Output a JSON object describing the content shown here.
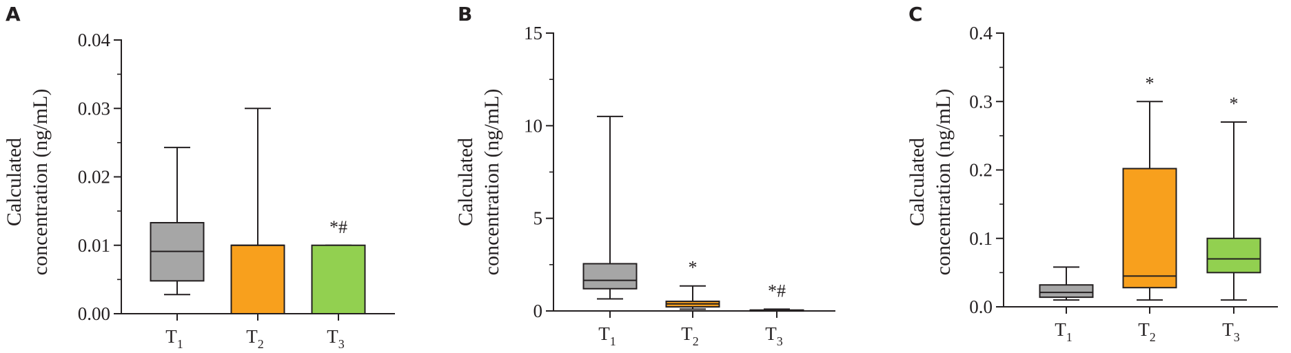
{
  "colors": {
    "axis": "#231f20",
    "T1": "#a6a6a6",
    "T2": "#f8a01d",
    "T3": "#92d050"
  },
  "chart_data": [
    {
      "panel": "A",
      "type": "box",
      "ylabel": [
        "Calculated",
        "concentration (ng/mL)"
      ],
      "ylim": [
        0,
        0.04
      ],
      "yticks": [
        "0.00",
        "0.01",
        "0.02",
        "0.03",
        "0.04"
      ],
      "yminor_step": 0.005,
      "categories": [
        {
          "main": "T",
          "sub": "1"
        },
        {
          "main": "T",
          "sub": "2"
        },
        {
          "main": "T",
          "sub": "3"
        }
      ],
      "boxes": [
        {
          "min": 0.0028,
          "q1": 0.0048,
          "median": 0.0091,
          "q3": 0.0133,
          "max": 0.0243,
          "annotation": ""
        },
        {
          "min": 0.0,
          "q1": 0.0,
          "median": 0.01,
          "q3": 0.01,
          "max": 0.03,
          "annotation": ""
        },
        {
          "min": 0.0,
          "q1": 0.0,
          "median": 0.0,
          "q3": 0.01,
          "max": 0.01,
          "annotation": "*#"
        }
      ]
    },
    {
      "panel": "B",
      "type": "box",
      "ylabel": [
        "Calculated",
        "concentration (ng/mL)"
      ],
      "ylim": [
        0,
        15
      ],
      "yticks": [
        "0",
        "5",
        "10",
        "15"
      ],
      "yminor_step": 2.5,
      "categories": [
        {
          "main": "T",
          "sub": "1"
        },
        {
          "main": "T",
          "sub": "2"
        },
        {
          "main": "T",
          "sub": "3"
        }
      ],
      "boxes": [
        {
          "min": 0.65,
          "q1": 1.2,
          "median": 1.65,
          "q3": 2.55,
          "max": 10.5,
          "annotation": ""
        },
        {
          "min": 0.1,
          "q1": 0.22,
          "median": 0.38,
          "q3": 0.52,
          "max": 1.35,
          "annotation": "*"
        },
        {
          "min": 0.0,
          "q1": 0.01,
          "median": 0.02,
          "q3": 0.05,
          "max": 0.1,
          "annotation": "*#"
        }
      ]
    },
    {
      "panel": "C",
      "type": "box",
      "ylabel": [
        "Calculated",
        "concentration (ng/mL)"
      ],
      "ylim": [
        0,
        0.4
      ],
      "yticks": [
        "0.0",
        "0.1",
        "0.2",
        "0.3",
        "0.4"
      ],
      "yminor_step": 0.05,
      "categories": [
        {
          "main": "T",
          "sub": "1"
        },
        {
          "main": "T",
          "sub": "2"
        },
        {
          "main": "T",
          "sub": "3"
        }
      ],
      "boxes": [
        {
          "min": 0.01,
          "q1": 0.014,
          "median": 0.021,
          "q3": 0.032,
          "max": 0.058,
          "annotation": ""
        },
        {
          "min": 0.01,
          "q1": 0.028,
          "median": 0.045,
          "q3": 0.202,
          "max": 0.3,
          "annotation": "*"
        },
        {
          "min": 0.01,
          "q1": 0.05,
          "median": 0.07,
          "q3": 0.1,
          "max": 0.27,
          "annotation": "*"
        }
      ]
    }
  ]
}
